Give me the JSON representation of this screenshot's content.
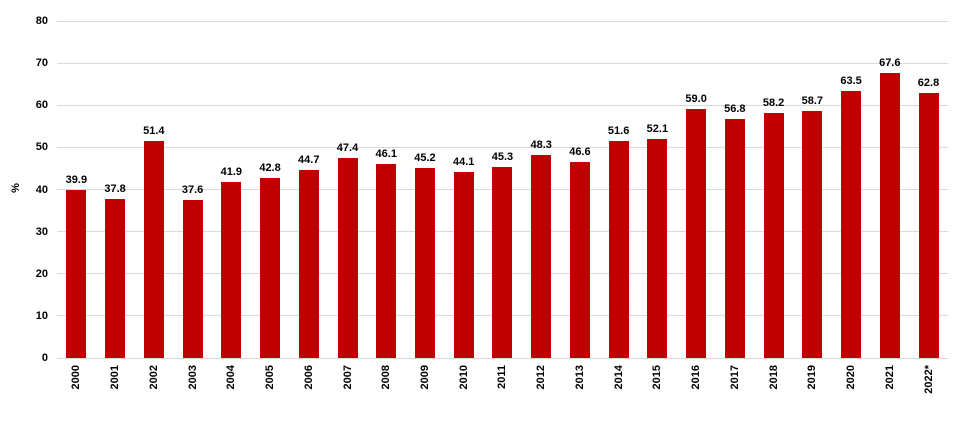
{
  "chart_data": {
    "type": "bar",
    "title": "",
    "xlabel": "",
    "ylabel": "%",
    "ylim": [
      0,
      80
    ],
    "yticks": [
      0,
      10,
      20,
      30,
      40,
      50,
      60,
      70,
      80
    ],
    "grid": true,
    "legend_position": "none",
    "bar_color": "#c00000",
    "gridline_color": "#d9d9d9",
    "text_color": "#000000",
    "background_color": "#ffffff",
    "categories": [
      "2000",
      "2001",
      "2002",
      "2003",
      "2004",
      "2005",
      "2006",
      "2007",
      "2008",
      "2009",
      "2010",
      "2011",
      "2012",
      "2013",
      "2014",
      "2015",
      "2016",
      "2017",
      "2018",
      "2019",
      "2020",
      "2021",
      "2022*"
    ],
    "values": [
      39.9,
      37.8,
      51.4,
      37.6,
      41.9,
      42.8,
      44.7,
      47.4,
      46.1,
      45.2,
      44.1,
      45.3,
      48.3,
      46.6,
      51.6,
      52.1,
      59.0,
      56.8,
      58.2,
      58.7,
      63.5,
      67.6,
      62.8
    ],
    "value_labels": [
      "39.9",
      "37.8",
      "51.4",
      "37.6",
      "41.9",
      "42.8",
      "44.7",
      "47.4",
      "46.1",
      "45.2",
      "44.1",
      "45.3",
      "48.3",
      "46.6",
      "51.6",
      "52.1",
      "59.0",
      "56.8",
      "58.2",
      "58.7",
      "63.5",
      "67.6",
      "62.8"
    ]
  }
}
